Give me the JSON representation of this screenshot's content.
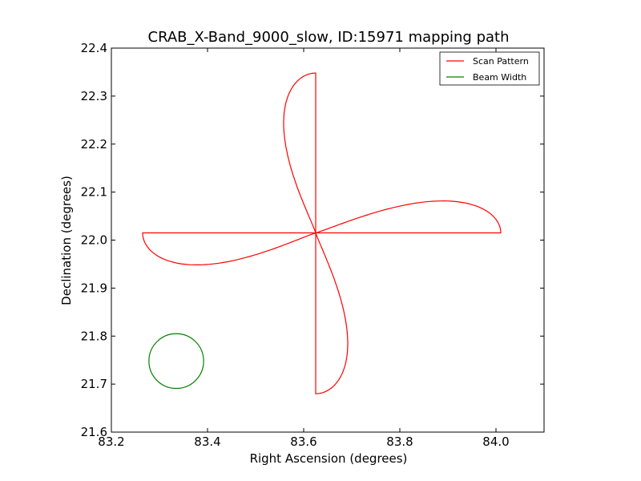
{
  "chart_data": {
    "type": "line",
    "title": "CRAB_X-Band_9000_slow, ID:15971 mapping path",
    "xlabel": "Right Ascension (degrees)",
    "ylabel": "Declination (degrees)",
    "xlim": [
      83.2,
      84.1
    ],
    "ylim": [
      21.6,
      22.4
    ],
    "x_ticks": [
      "83.2",
      "83.4",
      "83.6",
      "83.8",
      "84.0"
    ],
    "x_tick_values": [
      83.2,
      83.4,
      83.6,
      83.8,
      84.0
    ],
    "y_ticks": [
      "21.6",
      "21.7",
      "21.8",
      "21.9",
      "22.0",
      "22.1",
      "22.2",
      "22.3",
      "22.4"
    ],
    "y_tick_values": [
      21.6,
      21.7,
      21.8,
      21.9,
      22.0,
      22.1,
      22.2,
      22.3,
      22.4
    ],
    "grid": false,
    "legend_position": "top-right",
    "series": [
      {
        "name": "Scan Pattern",
        "color": "#ff0000",
        "style": "rose-curve",
        "center": [
          83.625,
          22.015
        ],
        "petals": [
          {
            "direction": "east",
            "tip": [
              84.01,
              22.015
            ],
            "half_width": 0.09
          },
          {
            "direction": "north",
            "tip": [
              83.625,
              22.348
            ],
            "half_width": 0.09
          },
          {
            "direction": "west",
            "tip": [
              83.265,
              22.015
            ],
            "half_width": 0.09
          },
          {
            "direction": "south",
            "tip": [
              83.625,
              21.68
            ],
            "half_width": 0.09
          }
        ]
      },
      {
        "name": "Beam Width",
        "color": "#008000",
        "style": "circle",
        "center": [
          83.335,
          21.748
        ],
        "radius_dec": 0.057
      }
    ]
  }
}
